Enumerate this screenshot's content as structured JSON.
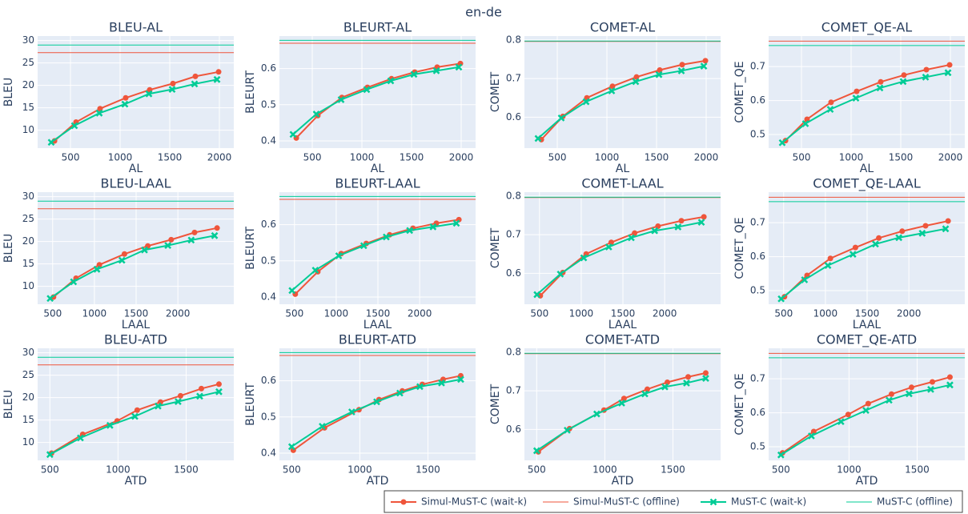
{
  "title": "en-de",
  "legend": [
    {
      "name": "Simul-MuST-C (wait-k)",
      "color": "#ef553b",
      "style": "line-marker",
      "marker": "circle"
    },
    {
      "name": "Simul-MuST-C (offline)",
      "color": "#ef553b",
      "style": "hline"
    },
    {
      "name": "MuST-C (wait-k)",
      "color": "#00cc96",
      "style": "line-marker",
      "marker": "x"
    },
    {
      "name": "MuST-C (offline)",
      "color": "#00cc96",
      "style": "hline"
    }
  ],
  "chart_data": [
    {
      "type": "line",
      "title": "BLEU-AL",
      "xlabel": "AL",
      "ylabel": "BLEU",
      "grid": true,
      "xlim": [
        169,
        2145
      ],
      "xticks": [
        500,
        1000,
        1500,
        2000
      ],
      "ylim": [
        6,
        31
      ],
      "yticks": [
        10,
        15,
        20,
        25,
        30
      ],
      "series": [
        {
          "x": [
            339,
            556,
            798,
            1056,
            1298,
            1532,
            1758,
            1992
          ],
          "values": [
            7.6,
            11.8,
            14.8,
            17.2,
            19.0,
            20.4,
            22.0,
            23.0
          ]
        },
        {
          "values": [
            27.3
          ]
        },
        {
          "x": [
            306,
            540,
            790,
            1048,
            1290,
            1524,
            1750,
            1976
          ],
          "values": [
            7.3,
            11.0,
            13.8,
            15.8,
            18.1,
            19.1,
            20.3,
            21.3
          ]
        },
        {
          "values": [
            29.0
          ]
        }
      ]
    },
    {
      "type": "line",
      "title": "BLEURT-AL",
      "xlabel": "AL",
      "ylabel": "BLEURT",
      "grid": true,
      "xlim": [
        169,
        2145
      ],
      "xticks": [
        500,
        1000,
        1500,
        2000
      ],
      "ylim": [
        0.38,
        0.69
      ],
      "yticks": [
        0.4,
        0.5,
        0.6
      ],
      "series": [
        {
          "x": [
            339,
            556,
            798,
            1056,
            1298,
            1532,
            1758,
            1992
          ],
          "values": [
            0.408,
            0.47,
            0.52,
            0.548,
            0.572,
            0.59,
            0.604,
            0.614
          ]
        },
        {
          "values": [
            0.67
          ]
        },
        {
          "x": [
            306,
            540,
            790,
            1048,
            1290,
            1524,
            1750,
            1976
          ],
          "values": [
            0.418,
            0.474,
            0.514,
            0.542,
            0.566,
            0.584,
            0.594,
            0.604
          ]
        },
        {
          "values": [
            0.678
          ]
        }
      ]
    },
    {
      "type": "line",
      "title": "COMET-AL",
      "xlabel": "AL",
      "ylabel": "COMET",
      "grid": true,
      "xlim": [
        169,
        2145
      ],
      "xticks": [
        500,
        1000,
        1500,
        2000
      ],
      "ylim": [
        0.52,
        0.81
      ],
      "yticks": [
        0.6,
        0.7,
        0.8
      ],
      "series": [
        {
          "x": [
            339,
            556,
            798,
            1056,
            1298,
            1532,
            1758,
            1992
          ],
          "values": [
            0.542,
            0.602,
            0.65,
            0.68,
            0.704,
            0.722,
            0.736,
            0.746
          ]
        },
        {
          "values": [
            0.796
          ]
        },
        {
          "x": [
            306,
            540,
            790,
            1048,
            1290,
            1524,
            1750,
            1976
          ],
          "values": [
            0.545,
            0.598,
            0.64,
            0.668,
            0.692,
            0.71,
            0.72,
            0.732
          ]
        },
        {
          "values": [
            0.797
          ]
        }
      ]
    },
    {
      "type": "line",
      "title": "COMET_QE-AL",
      "xlabel": "AL",
      "ylabel": "COMET_QE",
      "grid": true,
      "xlim": [
        169,
        2145
      ],
      "xticks": [
        500,
        1000,
        1500,
        2000
      ],
      "ylim": [
        0.46,
        0.79
      ],
      "yticks": [
        0.5,
        0.6,
        0.7
      ],
      "series": [
        {
          "x": [
            339,
            556,
            798,
            1056,
            1298,
            1532,
            1758,
            1992
          ],
          "values": [
            0.482,
            0.545,
            0.595,
            0.627,
            0.655,
            0.675,
            0.691,
            0.705
          ]
        },
        {
          "values": [
            0.775
          ]
        },
        {
          "x": [
            306,
            540,
            790,
            1048,
            1290,
            1524,
            1750,
            1976
          ],
          "values": [
            0.476,
            0.532,
            0.574,
            0.607,
            0.637,
            0.656,
            0.669,
            0.682
          ]
        },
        {
          "values": [
            0.762
          ]
        }
      ]
    },
    {
      "type": "line",
      "title": "BLEU-LAAL",
      "xlabel": "LAAL",
      "ylabel": "BLEU",
      "grid": true,
      "xlim": [
        320,
        2670
      ],
      "xticks": [
        500,
        1000,
        1500,
        2000
      ],
      "ylim": [
        6,
        31
      ],
      "yticks": [
        10,
        15,
        20,
        25,
        30
      ],
      "series": [
        {
          "x": [
            510,
            780,
            1060,
            1360,
            1640,
            1920,
            2200,
            2470
          ],
          "values": [
            7.6,
            11.8,
            14.8,
            17.2,
            19.0,
            20.4,
            22.0,
            23.0
          ]
        },
        {
          "values": [
            27.3
          ]
        },
        {
          "x": [
            470,
            750,
            1030,
            1330,
            1600,
            1880,
            2160,
            2440
          ],
          "values": [
            7.3,
            11.0,
            13.8,
            15.8,
            18.1,
            19.1,
            20.3,
            21.3
          ]
        },
        {
          "values": [
            29.0
          ]
        }
      ]
    },
    {
      "type": "line",
      "title": "BLEURT-LAAL",
      "xlabel": "LAAL",
      "ylabel": "BLEURT",
      "grid": true,
      "xlim": [
        320,
        2670
      ],
      "xticks": [
        500,
        1000,
        1500,
        2000
      ],
      "ylim": [
        0.38,
        0.69
      ],
      "yticks": [
        0.4,
        0.5,
        0.6
      ],
      "series": [
        {
          "x": [
            510,
            780,
            1060,
            1360,
            1640,
            1920,
            2200,
            2470
          ],
          "values": [
            0.408,
            0.47,
            0.52,
            0.548,
            0.572,
            0.59,
            0.604,
            0.614
          ]
        },
        {
          "values": [
            0.67
          ]
        },
        {
          "x": [
            470,
            750,
            1030,
            1330,
            1600,
            1880,
            2160,
            2440
          ],
          "values": [
            0.418,
            0.474,
            0.514,
            0.542,
            0.566,
            0.584,
            0.594,
            0.604
          ]
        },
        {
          "values": [
            0.678
          ]
        }
      ]
    },
    {
      "type": "line",
      "title": "COMET-LAAL",
      "xlabel": "LAAL",
      "ylabel": "COMET",
      "grid": true,
      "xlim": [
        320,
        2670
      ],
      "xticks": [
        500,
        1000,
        1500,
        2000
      ],
      "ylim": [
        0.52,
        0.81
      ],
      "yticks": [
        0.6,
        0.7,
        0.8
      ],
      "series": [
        {
          "x": [
            510,
            780,
            1060,
            1360,
            1640,
            1920,
            2200,
            2470
          ],
          "values": [
            0.542,
            0.602,
            0.65,
            0.68,
            0.704,
            0.722,
            0.736,
            0.746
          ]
        },
        {
          "values": [
            0.796
          ]
        },
        {
          "x": [
            470,
            750,
            1030,
            1330,
            1600,
            1880,
            2160,
            2440
          ],
          "values": [
            0.545,
            0.598,
            0.64,
            0.668,
            0.692,
            0.71,
            0.72,
            0.732
          ]
        },
        {
          "values": [
            0.797
          ]
        }
      ]
    },
    {
      "type": "line",
      "title": "COMET_QE-LAAL",
      "xlabel": "LAAL",
      "ylabel": "COMET_QE",
      "grid": true,
      "xlim": [
        320,
        2670
      ],
      "xticks": [
        500,
        1000,
        1500,
        2000
      ],
      "ylim": [
        0.46,
        0.79
      ],
      "yticks": [
        0.5,
        0.6,
        0.7
      ],
      "series": [
        {
          "x": [
            510,
            780,
            1060,
            1360,
            1640,
            1920,
            2200,
            2470
          ],
          "values": [
            0.482,
            0.545,
            0.595,
            0.627,
            0.655,
            0.675,
            0.691,
            0.705
          ]
        },
        {
          "values": [
            0.775
          ]
        },
        {
          "x": [
            470,
            750,
            1030,
            1330,
            1600,
            1880,
            2160,
            2440
          ],
          "values": [
            0.476,
            0.532,
            0.574,
            0.607,
            0.637,
            0.656,
            0.669,
            0.682
          ]
        },
        {
          "values": [
            0.762
          ]
        }
      ]
    },
    {
      "type": "line",
      "title": "BLEU-ATD",
      "xlabel": "ATD",
      "ylabel": "BLEU",
      "grid": true,
      "xlim": [
        410,
        1850
      ],
      "xticks": [
        500,
        1000,
        1500
      ],
      "ylim": [
        6,
        31
      ],
      "yticks": [
        10,
        15,
        20,
        25,
        30
      ],
      "series": [
        {
          "x": [
            512,
            741,
            994,
            1141,
            1312,
            1459,
            1612,
            1741
          ],
          "values": [
            7.6,
            11.8,
            14.8,
            17.2,
            19.0,
            20.4,
            22.0,
            23.0
          ]
        },
        {
          "values": [
            27.3
          ]
        },
        {
          "x": [
            500,
            724,
            941,
            1124,
            1294,
            1441,
            1600,
            1741
          ],
          "values": [
            7.3,
            11.0,
            13.8,
            15.8,
            18.1,
            19.1,
            20.3,
            21.3
          ]
        },
        {
          "values": [
            29.0
          ]
        }
      ]
    },
    {
      "type": "line",
      "title": "BLEURT-ATD",
      "xlabel": "ATD",
      "ylabel": "BLEURT",
      "grid": true,
      "xlim": [
        410,
        1850
      ],
      "xticks": [
        500,
        1000,
        1500
      ],
      "ylim": [
        0.38,
        0.69
      ],
      "yticks": [
        0.4,
        0.5,
        0.6
      ],
      "series": [
        {
          "x": [
            512,
            741,
            994,
            1141,
            1312,
            1459,
            1612,
            1741
          ],
          "values": [
            0.408,
            0.47,
            0.52,
            0.548,
            0.572,
            0.59,
            0.604,
            0.614
          ]
        },
        {
          "values": [
            0.67
          ]
        },
        {
          "x": [
            500,
            724,
            941,
            1124,
            1294,
            1441,
            1600,
            1741
          ],
          "values": [
            0.418,
            0.474,
            0.514,
            0.542,
            0.566,
            0.584,
            0.594,
            0.604
          ]
        },
        {
          "values": [
            0.678
          ]
        }
      ]
    },
    {
      "type": "line",
      "title": "COMET-ATD",
      "xlabel": "ATD",
      "ylabel": "COMET",
      "grid": true,
      "xlim": [
        410,
        1850
      ],
      "xticks": [
        500,
        1000,
        1500
      ],
      "ylim": [
        0.52,
        0.81
      ],
      "yticks": [
        0.6,
        0.7,
        0.8
      ],
      "series": [
        {
          "x": [
            512,
            741,
            994,
            1141,
            1312,
            1459,
            1612,
            1741
          ],
          "values": [
            0.542,
            0.602,
            0.65,
            0.68,
            0.704,
            0.722,
            0.736,
            0.746
          ]
        },
        {
          "values": [
            0.796
          ]
        },
        {
          "x": [
            500,
            724,
            941,
            1124,
            1294,
            1441,
            1600,
            1741
          ],
          "values": [
            0.545,
            0.598,
            0.64,
            0.668,
            0.692,
            0.71,
            0.72,
            0.732
          ]
        },
        {
          "values": [
            0.797
          ]
        }
      ]
    },
    {
      "type": "line",
      "title": "COMET_QE-ATD",
      "xlabel": "ATD",
      "ylabel": "COMET_QE",
      "grid": true,
      "xlim": [
        410,
        1850
      ],
      "xticks": [
        500,
        1000,
        1500
      ],
      "ylim": [
        0.46,
        0.79
      ],
      "yticks": [
        0.5,
        0.6,
        0.7
      ],
      "series": [
        {
          "x": [
            512,
            741,
            994,
            1141,
            1312,
            1459,
            1612,
            1741
          ],
          "values": [
            0.482,
            0.545,
            0.595,
            0.627,
            0.655,
            0.675,
            0.691,
            0.705
          ]
        },
        {
          "values": [
            0.775
          ]
        },
        {
          "x": [
            500,
            724,
            941,
            1124,
            1294,
            1441,
            1600,
            1741
          ],
          "values": [
            0.476,
            0.532,
            0.574,
            0.607,
            0.637,
            0.656,
            0.669,
            0.682
          ]
        },
        {
          "values": [
            0.762
          ]
        }
      ]
    }
  ]
}
